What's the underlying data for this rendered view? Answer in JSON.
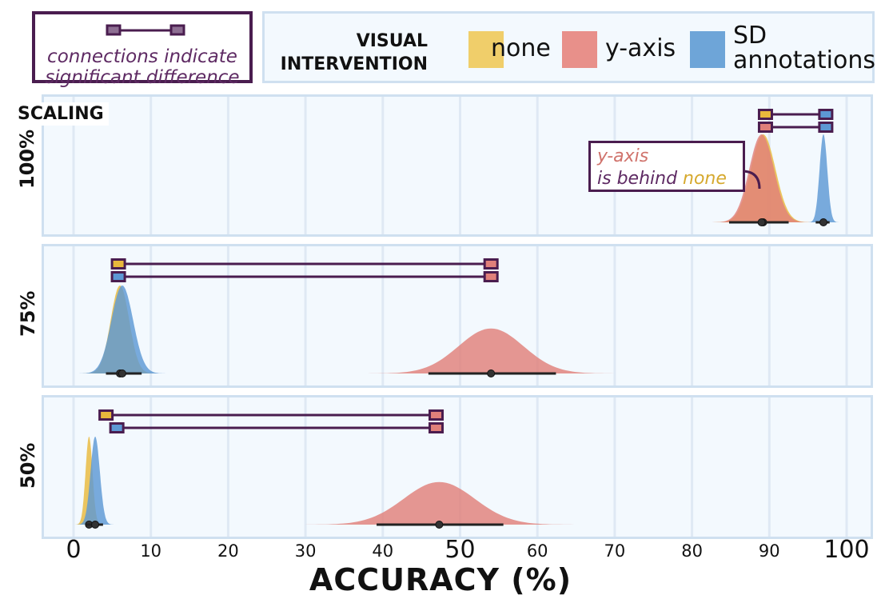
{
  "legend_note": {
    "text": "connections indicate significant difference"
  },
  "legend": {
    "title": "VISUAL INTERVENTION",
    "items": [
      {
        "label": "none",
        "color": "#f0ce6a"
      },
      {
        "label": "y-axis",
        "color": "#e8908a"
      },
      {
        "label": "SD annotations",
        "color": "#6ea5d8"
      }
    ]
  },
  "annotation": {
    "part1": "y-axis",
    "part2": "is behind",
    "part3": "none"
  },
  "chart_data": {
    "type": "area",
    "title": "",
    "facet_title": "SCALING",
    "xlabel": "ACCURACY (%)",
    "xlim": [
      0,
      100
    ],
    "xticks": [
      0,
      10,
      20,
      30,
      40,
      50,
      60,
      70,
      80,
      90,
      100
    ],
    "legend_position": "top",
    "grid": true,
    "series_colors": {
      "none": "#f0ce6a",
      "y-axis": "#e8908a",
      "SD annotations": "#6ea5d8"
    },
    "panels": [
      {
        "label": "100%",
        "distributions": [
          {
            "series": "none",
            "mean": 89.2,
            "sd": 1.6,
            "ci": [
              84.8,
              92.5
            ]
          },
          {
            "series": "y-axis",
            "mean": 89.0,
            "sd": 1.6,
            "ci": [
              84.8,
              92.5
            ]
          },
          {
            "series": "SD annotations",
            "mean": 97.0,
            "sd": 0.5,
            "ci": [
              96.0,
              97.8
            ]
          }
        ],
        "connections": [
          {
            "from": "none",
            "to": "SD annotations",
            "x": [
              89.5,
              97.3
            ]
          },
          {
            "from": "y-axis",
            "to": "SD annotations",
            "x": [
              89.5,
              97.3
            ]
          }
        ]
      },
      {
        "label": "75%",
        "distributions": [
          {
            "series": "none",
            "mean": 6.0,
            "sd": 1.2,
            "ci": [
              4.2,
              8.8
            ]
          },
          {
            "series": "SD annotations",
            "mean": 6.3,
            "sd": 1.4,
            "ci": [
              4.2,
              8.8
            ]
          },
          {
            "series": "y-axis",
            "mean": 54.0,
            "sd": 4.2,
            "ci": [
              45.9,
              62.4
            ]
          }
        ],
        "connections": [
          {
            "from": "none",
            "to": "y-axis",
            "x": [
              5.8,
              54.0
            ]
          },
          {
            "from": "SD annotations",
            "to": "y-axis",
            "x": [
              5.8,
              54.0
            ]
          }
        ]
      },
      {
        "label": "50%",
        "distributions": [
          {
            "series": "none",
            "mean": 2.0,
            "sd": 0.45,
            "ci": [
              1.6,
              3.8
            ]
          },
          {
            "series": "SD annotations",
            "mean": 2.8,
            "sd": 0.6,
            "ci": [
              1.6,
              3.8
            ]
          },
          {
            "series": "y-axis",
            "mean": 47.3,
            "sd": 4.6,
            "ci": [
              39.2,
              55.6
            ]
          }
        ],
        "connections": [
          {
            "from": "none",
            "to": "y-axis",
            "x": [
              4.2,
              46.9
            ]
          },
          {
            "from": "SD annotations",
            "to": "y-axis",
            "x": [
              5.6,
              46.9
            ]
          }
        ]
      }
    ]
  }
}
